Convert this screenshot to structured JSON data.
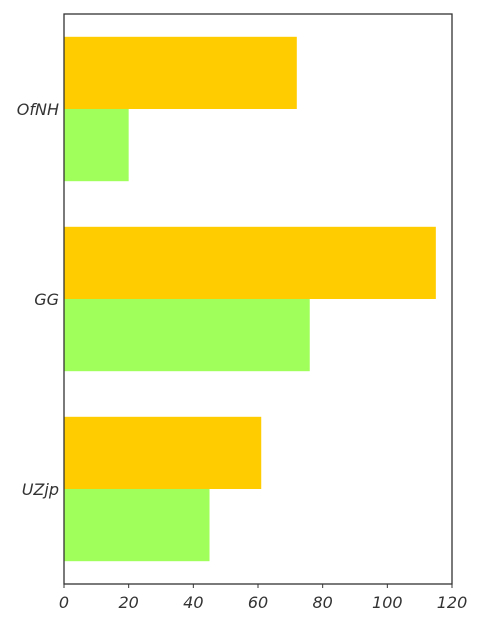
{
  "chart_data": {
    "type": "bar",
    "orientation": "horizontal",
    "categories": [
      "OfNH",
      "GG",
      "UZjp"
    ],
    "series": [
      {
        "color": "#ffcc00",
        "values": [
          72,
          115,
          61
        ]
      },
      {
        "color": "#a0ff5a",
        "values": [
          20,
          76,
          45
        ]
      }
    ],
    "x_ticks": [
      "0",
      "20",
      "40",
      "60",
      "80",
      "100",
      "120"
    ],
    "xlim": [
      0,
      120
    ],
    "xlabel": "",
    "ylabel": "",
    "title": "",
    "grid": false,
    "legend": false
  }
}
